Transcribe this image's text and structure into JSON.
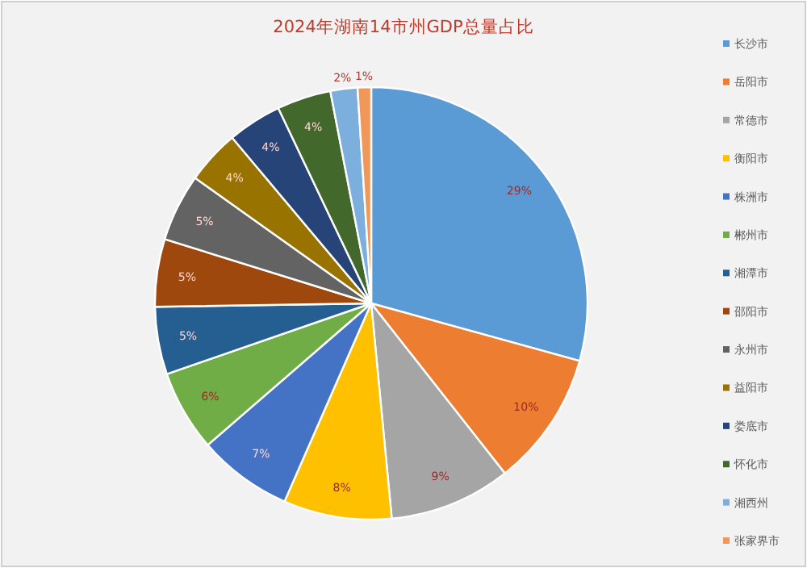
{
  "chart_data": {
    "type": "pie",
    "title": "2024年湖南14市州GDP总量占比",
    "categories": [
      "长沙市",
      "岳阳市",
      "常德市",
      "衡阳市",
      "株洲市",
      "郴州市",
      "湘潭市",
      "邵阳市",
      "永州市",
      "益阳市",
      "娄底市",
      "怀化市",
      "湘西州",
      "张家界市"
    ],
    "values": [
      29,
      10,
      9,
      8,
      7,
      6,
      5,
      5,
      5,
      4,
      4,
      4,
      2,
      1
    ],
    "value_labels": [
      "29%",
      "10%",
      "9%",
      "8%",
      "7%",
      "6%",
      "5%",
      "5%",
      "5%",
      "4%",
      "4%",
      "4%",
      "2%",
      "1%"
    ],
    "colors": [
      "#5b9bd5",
      "#ed7d31",
      "#a5a5a5",
      "#ffc000",
      "#4472c4",
      "#70ad47",
      "#255e91",
      "#9e480e",
      "#636363",
      "#997300",
      "#264478",
      "#43682b",
      "#7cafdd",
      "#f1975a"
    ],
    "legend": "right"
  }
}
